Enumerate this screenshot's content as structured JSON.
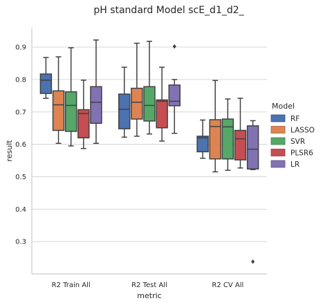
{
  "chart_data": {
    "type": "box",
    "title": "pH standard Model scE_d1_d2_",
    "xlabel": "metric",
    "ylabel": "result",
    "ylim": [
      0.2,
      0.96
    ],
    "yticks": [
      "0.3",
      "0.4",
      "0.5",
      "0.6",
      "0.7",
      "0.8",
      "0.9"
    ],
    "grid": "horizontal",
    "legend": {
      "title": "Model",
      "placement": "right"
    },
    "categories": [
      "R2 Train All",
      "R2 Test All",
      "R2 CV All"
    ],
    "series": [
      {
        "name": "RF",
        "color": "#4c72b0",
        "boxes": [
          {
            "whislo": 0.742,
            "q1": 0.757,
            "med": 0.798,
            "q3": 0.817,
            "whishi": 0.868,
            "fliers": []
          },
          {
            "whislo": 0.622,
            "q1": 0.648,
            "med": 0.708,
            "q3": 0.755,
            "whishi": 0.838,
            "fliers": []
          },
          {
            "whislo": 0.557,
            "q1": 0.577,
            "med": 0.62,
            "q3": 0.625,
            "whishi": 0.675,
            "fliers": []
          }
        ]
      },
      {
        "name": "LASSO",
        "color": "#dd8452",
        "boxes": [
          {
            "whislo": 0.603,
            "q1": 0.643,
            "med": 0.722,
            "q3": 0.765,
            "whishi": 0.87,
            "fliers": []
          },
          {
            "whislo": 0.625,
            "q1": 0.678,
            "med": 0.73,
            "q3": 0.773,
            "whishi": 0.912,
            "fliers": []
          },
          {
            "whislo": 0.515,
            "q1": 0.555,
            "med": 0.655,
            "q3": 0.676,
            "whishi": 0.797,
            "fliers": []
          }
        ]
      },
      {
        "name": "SVR",
        "color": "#55a868",
        "boxes": [
          {
            "whislo": 0.595,
            "q1": 0.64,
            "med": 0.72,
            "q3": 0.762,
            "whishi": 0.898,
            "fliers": []
          },
          {
            "whislo": 0.632,
            "q1": 0.672,
            "med": 0.72,
            "q3": 0.778,
            "whishi": 0.918,
            "fliers": []
          },
          {
            "whislo": 0.52,
            "q1": 0.555,
            "med": 0.654,
            "q3": 0.678,
            "whishi": 0.74,
            "fliers": []
          }
        ]
      },
      {
        "name": "PLSR6",
        "color": "#c44e52",
        "boxes": [
          {
            "whislo": 0.587,
            "q1": 0.62,
            "med": 0.695,
            "q3": 0.707,
            "whishi": 0.798,
            "fliers": []
          },
          {
            "whislo": 0.61,
            "q1": 0.651,
            "med": 0.733,
            "q3": 0.737,
            "whishi": 0.838,
            "fliers": []
          },
          {
            "whislo": 0.527,
            "q1": 0.552,
            "med": 0.617,
            "q3": 0.643,
            "whishi": 0.742,
            "fliers": []
          }
        ]
      },
      {
        "name": "LR",
        "color": "#8172b3",
        "boxes": [
          {
            "whislo": 0.603,
            "q1": 0.665,
            "med": 0.73,
            "q3": 0.778,
            "whishi": 0.922,
            "fliers": []
          },
          {
            "whislo": 0.634,
            "q1": 0.719,
            "med": 0.733,
            "q3": 0.783,
            "whishi": 0.8,
            "fliers": [
              0.902
            ]
          },
          {
            "whislo": 0.522,
            "q1": 0.524,
            "med": 0.585,
            "q3": 0.657,
            "whishi": 0.673,
            "fliers": [
              0.238
            ]
          }
        ]
      }
    ]
  }
}
